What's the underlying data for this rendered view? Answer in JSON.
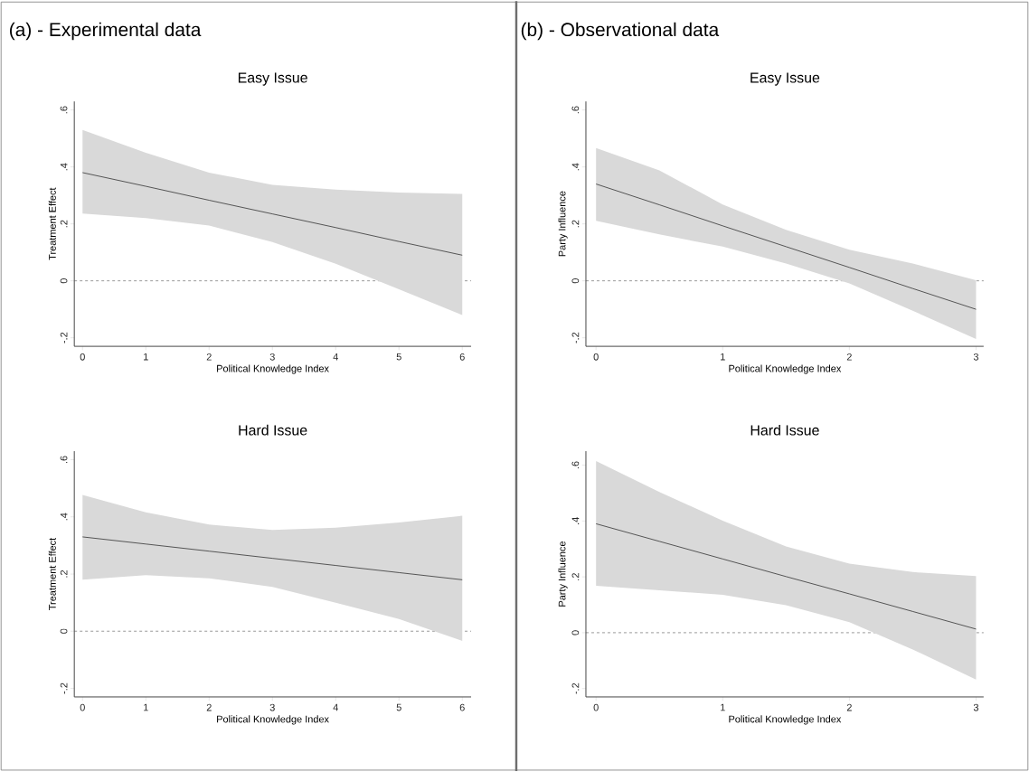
{
  "chart_data": [
    {
      "type": "line",
      "title": "Easy Issue",
      "xlabel": "Political Knowledge Index",
      "ylabel": "Treatment Effect",
      "annotations": [
        "(a) - Experimental data"
      ],
      "x": [
        0,
        1,
        2,
        3,
        4,
        5,
        6
      ],
      "xlim": [
        -0.13,
        6.14
      ],
      "ylim": [
        -0.23,
        0.63
      ],
      "xticks": [
        0,
        1,
        2,
        3,
        4,
        5,
        6
      ],
      "yticks": [
        {
          "value": -0.2,
          "label": "-.2"
        },
        0,
        {
          "value": 0.2,
          "label": ".2"
        },
        {
          "value": 0.4,
          "label": ".4"
        },
        {
          "value": 0.6,
          "label": ".6"
        }
      ],
      "ref_lines": [
        {
          "axis": "y",
          "value": 0,
          "color": "#555555",
          "line_style": "dashed"
        }
      ],
      "series": [
        {
          "color": "#333333",
          "values": [
            0.38,
            0.332,
            0.283,
            0.235,
            0.187,
            0.138,
            0.09
          ],
          "lower": [
            0.236,
            0.22,
            0.194,
            0.136,
            0.06,
            -0.03,
            -0.12
          ],
          "upper": [
            0.53,
            0.45,
            0.38,
            0.337,
            0.32,
            0.31,
            0.305
          ]
        }
      ]
    },
    {
      "type": "line",
      "title": "Easy Issue",
      "xlabel": "Political Knowledge Index",
      "ylabel": "Party Influence",
      "annotations": [
        "(b) - Observational data"
      ],
      "x": [
        0,
        0.5,
        1,
        1.5,
        2,
        2.5,
        3
      ],
      "xlim": [
        -0.08,
        3.06
      ],
      "ylim": [
        -0.23,
        0.63
      ],
      "xticks": [
        0,
        1,
        2,
        3
      ],
      "yticks": [
        {
          "value": -0.2,
          "label": "-.2"
        },
        0,
        {
          "value": 0.2,
          "label": ".2"
        },
        {
          "value": 0.4,
          "label": ".4"
        },
        {
          "value": 0.6,
          "label": ".6"
        }
      ],
      "ref_lines": [
        {
          "axis": "y",
          "value": 0,
          "color": "#555555",
          "line_style": "dashed"
        }
      ],
      "series": [
        {
          "color": "#333333",
          "values": [
            0.34,
            0.267,
            0.193,
            0.12,
            0.047,
            -0.027,
            -0.1
          ],
          "lower": [
            0.211,
            0.163,
            0.12,
            0.061,
            -0.009,
            -0.105,
            -0.204
          ],
          "upper": [
            0.466,
            0.388,
            0.268,
            0.179,
            0.109,
            0.061,
            0.002
          ]
        }
      ]
    },
    {
      "type": "line",
      "title": "Hard Issue",
      "xlabel": "Political Knowledge Index",
      "ylabel": "Treatment Effect",
      "x": [
        0,
        1,
        2,
        3,
        4,
        5,
        6
      ],
      "xlim": [
        -0.13,
        6.14
      ],
      "ylim": [
        -0.23,
        0.63
      ],
      "xticks": [
        0,
        1,
        2,
        3,
        4,
        5,
        6
      ],
      "yticks": [
        {
          "value": -0.2,
          "label": "-.2"
        },
        0,
        {
          "value": 0.2,
          "label": ".2"
        },
        {
          "value": 0.4,
          "label": ".4"
        },
        {
          "value": 0.6,
          "label": ".6"
        }
      ],
      "ref_lines": [
        {
          "axis": "y",
          "value": 0,
          "color": "#555555",
          "line_style": "dashed"
        }
      ],
      "series": [
        {
          "color": "#333333",
          "values": [
            0.33,
            0.305,
            0.28,
            0.255,
            0.23,
            0.205,
            0.18
          ],
          "lower": [
            0.18,
            0.196,
            0.185,
            0.155,
            0.1,
            0.043,
            -0.034
          ],
          "upper": [
            0.477,
            0.416,
            0.373,
            0.354,
            0.362,
            0.38,
            0.404
          ]
        }
      ]
    },
    {
      "type": "line",
      "title": "Hard Issue",
      "xlabel": "Political Knowledge Index",
      "ylabel": "Party Influence",
      "x": [
        0,
        0.5,
        1,
        1.5,
        2,
        2.5,
        3
      ],
      "xlim": [
        -0.08,
        3.06
      ],
      "ylim": [
        -0.23,
        0.65
      ],
      "xticks": [
        0,
        1,
        2,
        3
      ],
      "yticks": [
        {
          "value": -0.2,
          "label": "-.2"
        },
        0,
        {
          "value": 0.2,
          "label": ".2"
        },
        {
          "value": 0.4,
          "label": ".4"
        },
        {
          "value": 0.6,
          "label": ".6"
        }
      ],
      "ref_lines": [
        {
          "axis": "y",
          "value": 0,
          "color": "#555555",
          "line_style": "dashed"
        }
      ],
      "series": [
        {
          "color": "#333333",
          "values": [
            0.39,
            0.327,
            0.264,
            0.201,
            0.139,
            0.076,
            0.013
          ],
          "lower": [
            0.168,
            0.152,
            0.136,
            0.098,
            0.038,
            -0.06,
            -0.168
          ],
          "upper": [
            0.615,
            0.504,
            0.401,
            0.309,
            0.247,
            0.217,
            0.203
          ]
        }
      ]
    }
  ]
}
